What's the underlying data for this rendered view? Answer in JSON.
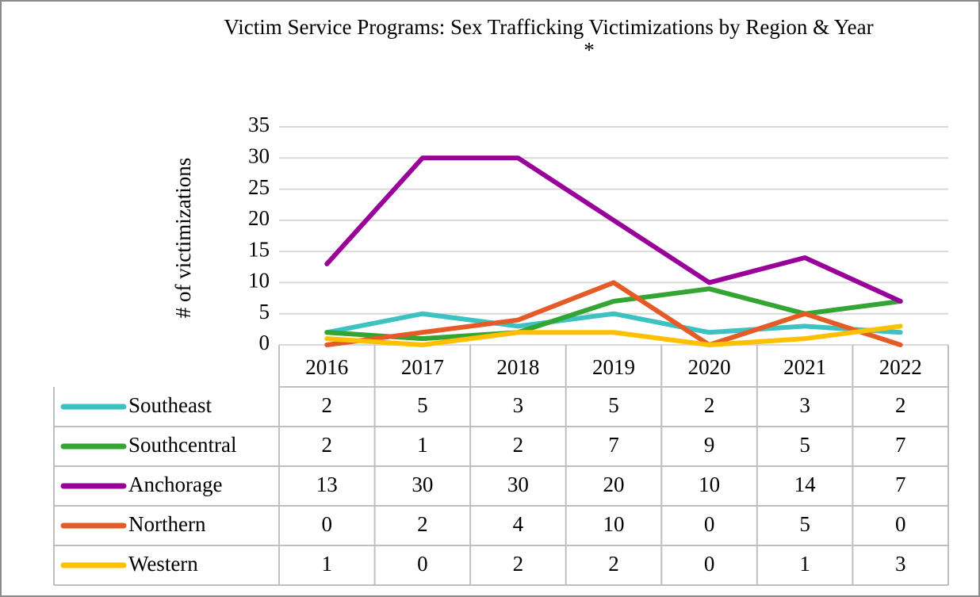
{
  "chart_data": {
    "type": "line",
    "title": "Victim Service Programs: Sex Trafficking Victimizations by Region & Year",
    "annotation": "*",
    "y_label": "# of victimizations",
    "categories": [
      "2016",
      "2017",
      "2018",
      "2019",
      "2020",
      "2021",
      "2022"
    ],
    "series": [
      {
        "name": "Southeast",
        "color": "#3ec1c1",
        "values": [
          2,
          5,
          3,
          5,
          2,
          3,
          2
        ]
      },
      {
        "name": "Southcentral",
        "color": "#33a532",
        "values": [
          2,
          1,
          2,
          7,
          9,
          5,
          7
        ]
      },
      {
        "name": "Anchorage",
        "color": "#990099",
        "values": [
          13,
          30,
          30,
          20,
          10,
          14,
          7
        ]
      },
      {
        "name": "Northern",
        "color": "#e55b28",
        "values": [
          0,
          2,
          4,
          10,
          0,
          5,
          0
        ]
      },
      {
        "name": "Western",
        "color": "#ffc000",
        "values": [
          1,
          0,
          2,
          2,
          0,
          1,
          3
        ]
      }
    ],
    "ylim": [
      0,
      35
    ],
    "yticks": [
      0,
      5,
      10,
      15,
      20,
      25,
      30,
      35
    ],
    "grid": true
  }
}
